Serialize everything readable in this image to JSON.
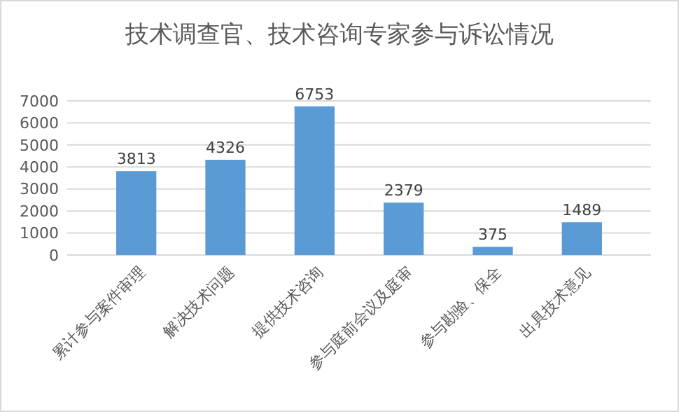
{
  "chart_data": {
    "type": "bar",
    "title": "技术调查官、技术咨询专家参与诉讼情况",
    "categories": [
      "累计参与案件审理",
      "解决技术问题",
      "提供技术咨询",
      "参与庭前会议及庭审",
      "参与勘验、保全",
      "出具技术意见"
    ],
    "values": [
      3813,
      4326,
      6753,
      2379,
      375,
      1489
    ],
    "color": "#5b9bd5",
    "ylim": [
      0,
      7000
    ],
    "yticks": [
      0,
      1000,
      2000,
      3000,
      4000,
      5000,
      6000,
      7000
    ],
    "grid": "y",
    "data_labels": true
  }
}
